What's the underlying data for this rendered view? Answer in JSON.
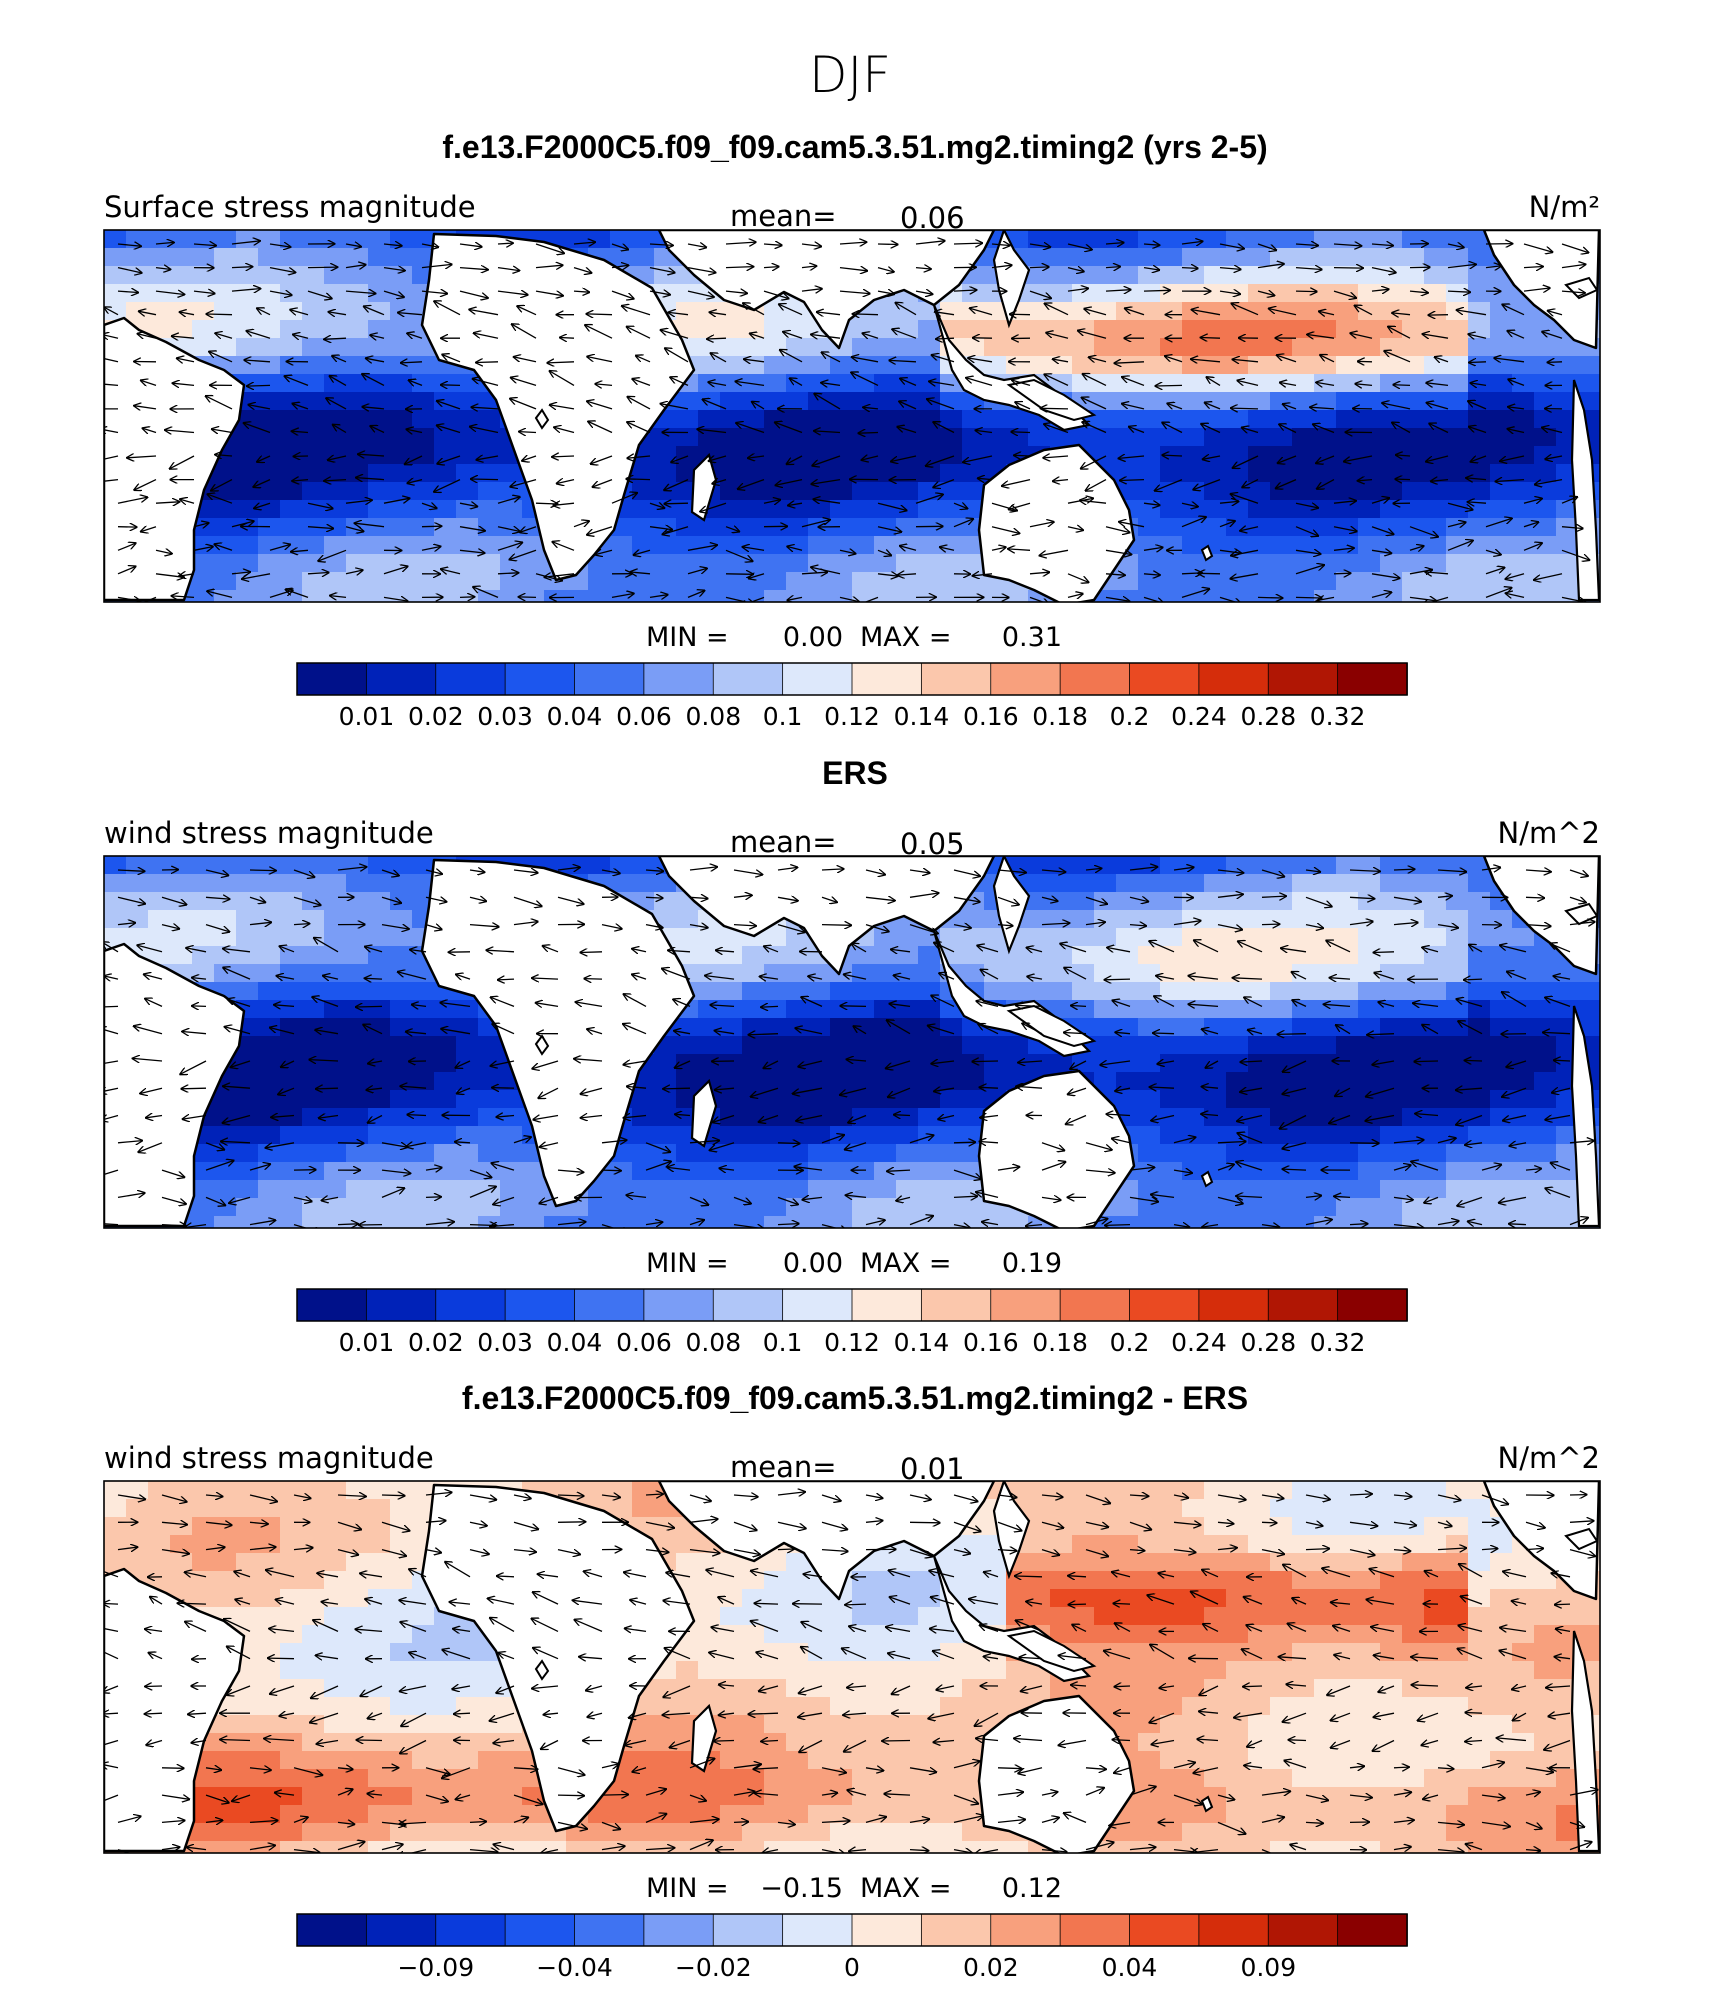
{
  "season": "DJF",
  "chart_data": [
    {
      "type": "heatmap",
      "title": "f.e13.F2000C5.f09_f09.cam5.3.51.mg2.timing2 (yrs 2-5)",
      "left_label": "Surface stress magnitude",
      "mean_label": "mean=",
      "mean_value": "0.06",
      "units": "N/m²",
      "min_label": "MIN =",
      "min_value": "0.00",
      "max_label": "MAX =",
      "max_value": "0.31",
      "colorbar_ticks": [
        "0.01",
        "0.02",
        "0.03",
        "0.04",
        "0.06",
        "0.08",
        "0.1",
        "0.12",
        "0.14",
        "0.16",
        "0.18",
        "0.2",
        "0.24",
        "0.28",
        "0.32"
      ],
      "colorbar_colors": [
        "#00118a",
        "#0022b8",
        "#0a3bdc",
        "#1c56ee",
        "#3f73f2",
        "#7a9df6",
        "#b0c6f8",
        "#dde8fb",
        "#fde9db",
        "#fbc7ac",
        "#f8a07d",
        "#f27650",
        "#ea4a22",
        "#d52d0b",
        "#b01604",
        "#8a0000"
      ]
    },
    {
      "type": "heatmap",
      "title": "ERS",
      "left_label": "wind stress magnitude",
      "mean_label": "mean=",
      "mean_value": "0.05",
      "units": "N/m^2",
      "min_label": "MIN =",
      "min_value": "0.00",
      "max_label": "MAX =",
      "max_value": "0.19",
      "colorbar_ticks": [
        "0.01",
        "0.02",
        "0.03",
        "0.04",
        "0.06",
        "0.08",
        "0.1",
        "0.12",
        "0.14",
        "0.16",
        "0.18",
        "0.2",
        "0.24",
        "0.28",
        "0.32"
      ],
      "colorbar_colors": [
        "#00118a",
        "#0022b8",
        "#0a3bdc",
        "#1c56ee",
        "#3f73f2",
        "#7a9df6",
        "#b0c6f8",
        "#dde8fb",
        "#fde9db",
        "#fbc7ac",
        "#f8a07d",
        "#f27650",
        "#ea4a22",
        "#d52d0b",
        "#b01604",
        "#8a0000"
      ]
    },
    {
      "type": "heatmap",
      "title": "f.e13.F2000C5.f09_f09.cam5.3.51.mg2.timing2 - ERS",
      "left_label": "wind stress magnitude",
      "mean_label": "mean=",
      "mean_value": "0.01",
      "units": "N/m^2",
      "min_label": "MIN =",
      "min_value": "−0.15",
      "max_label": "MAX =",
      "max_value": "0.12",
      "colorbar_ticks": [
        "−0.09",
        "−0.04",
        "−0.02",
        "0",
        "0.02",
        "0.04",
        "0.09"
      ],
      "colorbar_colors": [
        "#00118a",
        "#0022b8",
        "#0a3bdc",
        "#1c56ee",
        "#3f73f2",
        "#7a9df6",
        "#b0c6f8",
        "#dde8fb",
        "#fde9db",
        "#fbc7ac",
        "#f8a07d",
        "#f27650",
        "#ea4a22",
        "#d52d0b",
        "#b01604",
        "#8a0000"
      ]
    }
  ]
}
